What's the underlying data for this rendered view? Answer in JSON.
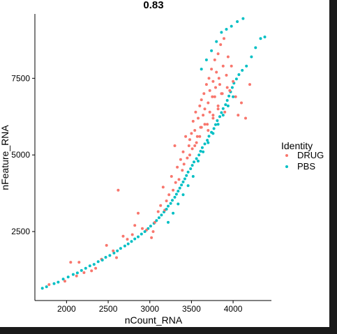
{
  "colors": {
    "DRUG": "#F8766D",
    "PBS": "#00BFC4"
  },
  "chart_data": {
    "type": "scatter",
    "title": "0.83",
    "xlabel": "nCount_RNA",
    "ylabel": "nFeature_RNA",
    "xlim": [
      1620,
      4460
    ],
    "ylim": [
      250,
      9600
    ],
    "xticks": [
      2000,
      2500,
      3000,
      3500,
      4000
    ],
    "yticks": [
      2500,
      5000,
      7500
    ],
    "grid": false,
    "legend": {
      "title": "Identity",
      "placement": "right",
      "entries": [
        "DRUG",
        "PBS"
      ]
    },
    "series": [
      {
        "name": "DRUG",
        "color": "#F8766D",
        "x": [
          1790,
          1980,
          2050,
          2120,
          2150,
          2210,
          2300,
          2350,
          2420,
          2480,
          2560,
          2600,
          2620,
          2680,
          2730,
          2790,
          2820,
          2860,
          2910,
          2960,
          3020,
          3040,
          3060,
          3100,
          3130,
          3160,
          3180,
          3200,
          3230,
          3260,
          3280,
          3300,
          3310,
          3330,
          3350,
          3370,
          3390,
          3400,
          3410,
          3430,
          3450,
          3470,
          3480,
          3500,
          3510,
          3520,
          3540,
          3550,
          3570,
          3580,
          3600,
          3610,
          3620,
          3640,
          3650,
          3660,
          3680,
          3700,
          3710,
          3720,
          3740,
          3750,
          3760,
          3780,
          3790,
          3800,
          3820,
          3830,
          3850,
          3860,
          3880,
          3890,
          3900,
          3920,
          3940,
          3960,
          3980,
          4000,
          4030,
          4060,
          4100,
          4150,
          4200,
          3560,
          3620,
          3690,
          3760,
          3820,
          3870,
          3930,
          3480,
          3540,
          3600,
          3660,
          3720,
          3780,
          3840,
          3700,
          3760,
          3820
        ],
        "y": [
          770,
          880,
          1500,
          1050,
          1500,
          1160,
          1220,
          1300,
          1600,
          2050,
          1870,
          1650,
          3850,
          2350,
          2250,
          2400,
          2700,
          3100,
          2600,
          2550,
          2300,
          2500,
          2800,
          3150,
          3350,
          3950,
          3200,
          3500,
          3700,
          4300,
          3850,
          5300,
          4100,
          4600,
          4200,
          4850,
          4500,
          5100,
          4700,
          5600,
          4900,
          5300,
          5500,
          5700,
          5200,
          6100,
          5800,
          6400,
          5600,
          6200,
          6600,
          5900,
          6800,
          6300,
          7000,
          6500,
          7300,
          6700,
          7500,
          7100,
          7800,
          6900,
          7400,
          8100,
          7200,
          7700,
          8300,
          7500,
          8600,
          7000,
          7900,
          8800,
          6400,
          7600,
          8200,
          7100,
          7900,
          7400,
          6900,
          6300,
          6700,
          6200,
          7300,
          5400,
          5900,
          6000,
          6300,
          6600,
          7000,
          7200,
          5000,
          5300,
          5600,
          6000,
          6400,
          6900,
          7300,
          5800,
          6200,
          6500
        ]
      },
      {
        "name": "PBS",
        "color": "#00BFC4",
        "x": [
          1710,
          1760,
          1850,
          1900,
          1960,
          2020,
          2080,
          2130,
          2180,
          2230,
          2280,
          2330,
          2380,
          2430,
          2470,
          2520,
          2570,
          2610,
          2650,
          2700,
          2740,
          2780,
          2820,
          2860,
          2900,
          2940,
          2980,
          3010,
          3050,
          3080,
          3110,
          3140,
          3170,
          3200,
          3220,
          3250,
          3270,
          3300,
          3320,
          3340,
          3360,
          3380,
          3400,
          3420,
          3440,
          3460,
          3490,
          3510,
          3530,
          3560,
          3590,
          3610,
          3630,
          3660,
          3690,
          3710,
          3740,
          3770,
          3790,
          3810,
          3840,
          3860,
          3880,
          3910,
          3930,
          3950,
          3970,
          3990,
          4010,
          4040,
          4070,
          4110,
          4160,
          4220,
          4270,
          4330,
          4380,
          3580,
          3640,
          3700,
          3760,
          3820,
          3880,
          3940,
          4000,
          3620,
          3680,
          3740,
          3800,
          3860,
          3920,
          3980,
          4050,
          4120,
          3520,
          3460,
          3400,
          3340,
          3280,
          3220
        ],
        "y": [
          650,
          700,
          800,
          850,
          950,
          1020,
          1100,
          1150,
          1230,
          1300,
          1380,
          1430,
          1520,
          1570,
          1660,
          1720,
          1800,
          1870,
          1950,
          2030,
          2100,
          2180,
          2260,
          2330,
          2420,
          2500,
          2600,
          2680,
          2770,
          2860,
          2950,
          3040,
          3140,
          3230,
          3330,
          3420,
          3520,
          3620,
          3720,
          3820,
          3920,
          4020,
          4120,
          4220,
          4330,
          4440,
          4550,
          4660,
          4770,
          4880,
          5000,
          5120,
          5240,
          5360,
          5480,
          5610,
          5740,
          5860,
          5990,
          6120,
          6250,
          6380,
          6510,
          6640,
          6780,
          6920,
          7060,
          7200,
          7340,
          7480,
          7620,
          7760,
          7900,
          8200,
          8500,
          8800,
          8850,
          4800,
          5100,
          5400,
          5700,
          6000,
          6300,
          6600,
          6900,
          7800,
          8100,
          8400,
          8700,
          9000,
          9100,
          9200,
          9350,
          9450,
          4300,
          4000,
          3700,
          3400,
          3100,
          2800
        ]
      }
    ]
  }
}
